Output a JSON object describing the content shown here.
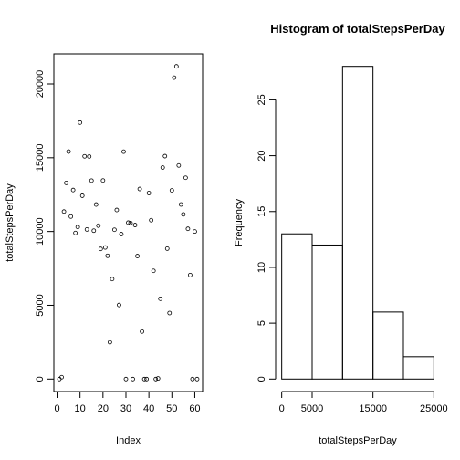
{
  "chart_data": [
    {
      "type": "scatter",
      "title": "",
      "xlabel": "Index",
      "ylabel": "totalStepsPerDay",
      "xlim": [
        1,
        61
      ],
      "ylim": [
        0,
        21194
      ],
      "xticks": [
        0,
        10,
        20,
        30,
        40,
        50,
        60
      ],
      "yticks": [
        0,
        5000,
        10000,
        15000,
        20000
      ],
      "grid": false,
      "series": [
        {
          "x": [
            1,
            2,
            3,
            4,
            5,
            6,
            7,
            8,
            9,
            10,
            11,
            12,
            13,
            14,
            15,
            16,
            17,
            18,
            19,
            20,
            21,
            22,
            23,
            24,
            25,
            26,
            27,
            28,
            29,
            30,
            31,
            32,
            33,
            34,
            35,
            36,
            37,
            38,
            39,
            40,
            41,
            42,
            43,
            44,
            45,
            46,
            47,
            48,
            49,
            50,
            51,
            52,
            53,
            54,
            55,
            56,
            57,
            58,
            59,
            60,
            61
          ],
          "values": [
            0,
            126,
            11352,
            13294,
            15420,
            11015,
            12811,
            9900,
            10304,
            17382,
            12426,
            15098,
            10139,
            15084,
            13452,
            10056,
            11829,
            10395,
            8821,
            13460,
            8918,
            8355,
            2492,
            6778,
            10119,
            11458,
            5018,
            9819,
            15414,
            0,
            10600,
            10571,
            0,
            10439,
            8334,
            12883,
            3219,
            0,
            0,
            12608,
            10765,
            7336,
            0,
            41,
            5441,
            14339,
            15110,
            8841,
            4472,
            12787,
            20427,
            21194,
            14478,
            11834,
            11162,
            13646,
            10183,
            7047,
            0,
            10000,
            0
          ]
        }
      ]
    },
    {
      "type": "bar",
      "title": "Histogram of totalStepsPerDay",
      "xlabel": "totalStepsPerDay",
      "ylabel": "Frequency",
      "bins": [
        [
          0,
          5000
        ],
        [
          5000,
          10000
        ],
        [
          10000,
          15000
        ],
        [
          15000,
          20000
        ],
        [
          20000,
          25000
        ]
      ],
      "values": [
        13,
        12,
        28,
        6,
        2
      ],
      "xlim": [
        0,
        25000
      ],
      "ylim": [
        0,
        28
      ],
      "xticks": [
        0,
        5000,
        15000,
        25000
      ],
      "yticks": [
        0,
        5,
        10,
        15,
        20,
        25
      ],
      "grid": false
    }
  ]
}
